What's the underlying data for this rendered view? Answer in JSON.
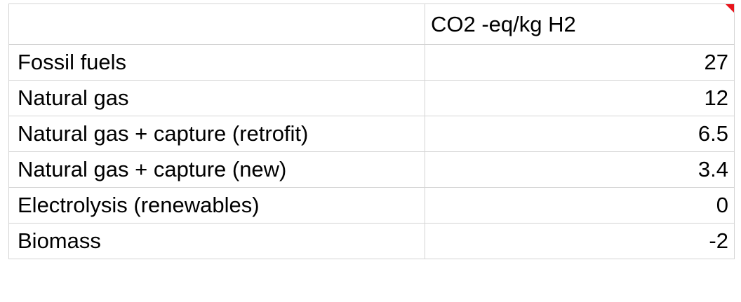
{
  "sheet": {
    "header": {
      "label": "",
      "value": "CO2 -eq/kg H2"
    },
    "rows": [
      {
        "label": "Fossil fuels",
        "value": "27"
      },
      {
        "label": "Natural gas",
        "value": "12"
      },
      {
        "label": "Natural gas + capture (retrofit)",
        "value": "6.5"
      },
      {
        "label": "Natural gas + capture (new)",
        "value": "3.4"
      },
      {
        "label": "Electrolysis (renewables)",
        "value": "0"
      },
      {
        "label": "Biomass",
        "value": "-2"
      }
    ],
    "comment_indicator_color": "#e8141b",
    "comment_indicator_icon": "comment-flag-icon"
  }
}
